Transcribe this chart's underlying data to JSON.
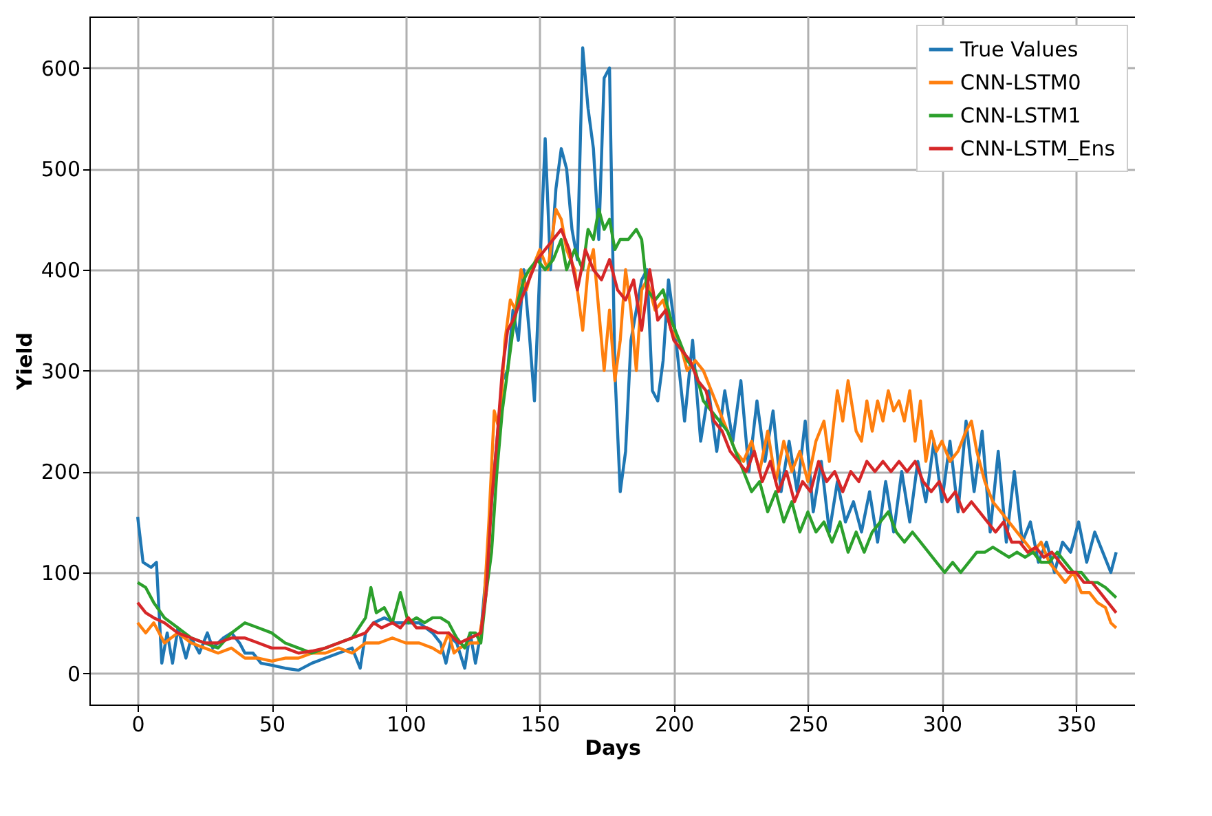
{
  "chart_data": {
    "type": "line",
    "xlabel": "Days",
    "ylabel": "Yield",
    "xlim": [
      -18,
      372
    ],
    "ylim": [
      -31,
      651
    ],
    "xticks": [
      0,
      50,
      100,
      150,
      200,
      250,
      300,
      350
    ],
    "yticks": [
      0,
      100,
      200,
      300,
      400,
      500,
      600
    ],
    "grid": true,
    "legend": "top right",
    "series": [
      {
        "name": "True Values",
        "color": "#1f77b4",
        "x": [
          0,
          2,
          5,
          7,
          9,
          11,
          13,
          15,
          18,
          20,
          23,
          26,
          28,
          32,
          35,
          38,
          40,
          43,
          46,
          50,
          55,
          60,
          65,
          70,
          75,
          80,
          83,
          85,
          88,
          92,
          96,
          100,
          105,
          110,
          113,
          115,
          117,
          119,
          122,
          124,
          126,
          128,
          130,
          132,
          134,
          136,
          138,
          140,
          142,
          144,
          146,
          148,
          150,
          152,
          154,
          156,
          158,
          160,
          162,
          164,
          166,
          168,
          170,
          172,
          174,
          176,
          178,
          180,
          182,
          184,
          186,
          188,
          190,
          192,
          194,
          196,
          198,
          200,
          204,
          207,
          210,
          213,
          216,
          219,
          222,
          225,
          228,
          231,
          234,
          237,
          240,
          243,
          246,
          249,
          252,
          255,
          258,
          261,
          264,
          267,
          270,
          273,
          276,
          279,
          282,
          285,
          288,
          291,
          294,
          297,
          300,
          303,
          306,
          309,
          312,
          315,
          318,
          321,
          324,
          327,
          330,
          333,
          336,
          339,
          342,
          345,
          348,
          351,
          354,
          357,
          360,
          363,
          365
        ],
        "values": [
          155,
          110,
          105,
          110,
          10,
          40,
          10,
          45,
          15,
          35,
          20,
          40,
          25,
          35,
          40,
          30,
          20,
          20,
          10,
          8,
          5,
          3,
          10,
          15,
          20,
          25,
          5,
          40,
          50,
          55,
          50,
          50,
          50,
          40,
          30,
          10,
          35,
          30,
          5,
          40,
          10,
          40,
          100,
          170,
          230,
          290,
          300,
          360,
          330,
          400,
          340,
          270,
          400,
          530,
          400,
          480,
          520,
          500,
          440,
          410,
          620,
          560,
          520,
          430,
          590,
          600,
          300,
          180,
          220,
          330,
          360,
          390,
          400,
          280,
          270,
          310,
          390,
          350,
          250,
          330,
          230,
          280,
          220,
          280,
          230,
          290,
          200,
          270,
          210,
          260,
          180,
          230,
          180,
          250,
          160,
          210,
          140,
          190,
          150,
          170,
          140,
          180,
          130,
          190,
          140,
          200,
          150,
          210,
          170,
          230,
          170,
          230,
          160,
          250,
          180,
          240,
          140,
          220,
          130,
          200,
          130,
          150,
          110,
          130,
          100,
          130,
          120,
          150,
          110,
          140,
          120,
          100,
          120
        ]
      },
      {
        "name": "CNN-LSTM0",
        "color": "#ff7f0e",
        "x": [
          0,
          3,
          6,
          10,
          15,
          20,
          25,
          30,
          35,
          40,
          45,
          50,
          55,
          60,
          65,
          70,
          75,
          80,
          85,
          90,
          95,
          100,
          105,
          110,
          113,
          116,
          118,
          120,
          124,
          127,
          129,
          131,
          133,
          135,
          137,
          139,
          141,
          143,
          145,
          147,
          150,
          153,
          156,
          158,
          160,
          163,
          166,
          168,
          170,
          172,
          174,
          176,
          178,
          180,
          182,
          184,
          186,
          188,
          190,
          193,
          196,
          199,
          202,
          205,
          208,
          211,
          214,
          217,
          220,
          223,
          226,
          229,
          232,
          235,
          238,
          241,
          244,
          247,
          250,
          253,
          256,
          258,
          261,
          263,
          265,
          268,
          270,
          272,
          274,
          276,
          278,
          280,
          282,
          284,
          286,
          288,
          290,
          292,
          294,
          296,
          298,
          300,
          303,
          306,
          309,
          311,
          313,
          316,
          319,
          322,
          325,
          328,
          331,
          334,
          337,
          340,
          343,
          346,
          349,
          352,
          355,
          358,
          361,
          363,
          365
        ],
        "values": [
          50,
          40,
          50,
          30,
          40,
          30,
          25,
          20,
          25,
          15,
          15,
          12,
          15,
          15,
          20,
          20,
          25,
          20,
          30,
          30,
          35,
          30,
          30,
          25,
          20,
          40,
          20,
          25,
          30,
          30,
          60,
          150,
          260,
          240,
          330,
          370,
          360,
          400,
          380,
          400,
          420,
          400,
          460,
          450,
          420,
          400,
          340,
          400,
          420,
          360,
          300,
          360,
          290,
          330,
          400,
          360,
          300,
          380,
          390,
          360,
          370,
          340,
          330,
          300,
          310,
          300,
          280,
          260,
          240,
          220,
          210,
          230,
          200,
          240,
          190,
          230,
          200,
          220,
          190,
          230,
          250,
          210,
          280,
          250,
          290,
          240,
          230,
          270,
          240,
          270,
          250,
          280,
          260,
          270,
          250,
          280,
          230,
          270,
          210,
          240,
          220,
          230,
          210,
          220,
          240,
          250,
          220,
          190,
          170,
          160,
          150,
          140,
          130,
          120,
          130,
          110,
          100,
          90,
          100,
          80,
          80,
          70,
          65,
          50,
          45
        ]
      },
      {
        "name": "CNN-LSTM1",
        "color": "#2ca02c",
        "x": [
          0,
          3,
          6,
          10,
          15,
          20,
          25,
          30,
          35,
          40,
          45,
          50,
          55,
          60,
          65,
          70,
          75,
          80,
          85,
          87,
          89,
          92,
          95,
          98,
          101,
          104,
          107,
          110,
          113,
          116,
          119,
          122,
          124,
          126,
          128,
          130,
          132,
          134,
          136,
          138,
          140,
          142,
          144,
          146,
          149,
          152,
          155,
          158,
          160,
          163,
          166,
          168,
          170,
          172,
          174,
          176,
          178,
          180,
          183,
          186,
          188,
          190,
          193,
          196,
          199,
          202,
          205,
          208,
          211,
          214,
          217,
          220,
          223,
          226,
          229,
          232,
          235,
          238,
          241,
          244,
          247,
          250,
          253,
          256,
          259,
          262,
          265,
          268,
          271,
          274,
          277,
          280,
          283,
          286,
          289,
          292,
          295,
          298,
          301,
          304,
          307,
          310,
          313,
          316,
          319,
          322,
          325,
          328,
          331,
          334,
          337,
          340,
          343,
          346,
          349,
          352,
          355,
          358,
          361,
          365
        ],
        "values": [
          90,
          85,
          70,
          55,
          45,
          35,
          30,
          25,
          40,
          50,
          45,
          40,
          30,
          25,
          20,
          25,
          30,
          35,
          55,
          85,
          60,
          65,
          50,
          80,
          50,
          55,
          50,
          55,
          55,
          50,
          35,
          25,
          40,
          40,
          30,
          80,
          120,
          200,
          260,
          300,
          340,
          370,
          390,
          400,
          410,
          400,
          410,
          430,
          400,
          420,
          400,
          440,
          430,
          460,
          440,
          450,
          420,
          430,
          430,
          440,
          430,
          380,
          370,
          380,
          350,
          330,
          310,
          300,
          270,
          260,
          250,
          240,
          220,
          200,
          180,
          190,
          160,
          180,
          150,
          170,
          140,
          160,
          140,
          150,
          130,
          150,
          120,
          140,
          120,
          140,
          150,
          160,
          140,
          130,
          140,
          130,
          120,
          110,
          100,
          110,
          100,
          110,
          120,
          120,
          125,
          120,
          115,
          120,
          115,
          120,
          110,
          110,
          120,
          110,
          100,
          100,
          90,
          90,
          85,
          75
        ]
      },
      {
        "name": "CNN-LSTM_Ens",
        "color": "#d62728",
        "x": [
          0,
          3,
          6,
          10,
          15,
          20,
          25,
          30,
          35,
          40,
          45,
          50,
          55,
          60,
          65,
          70,
          75,
          80,
          85,
          88,
          91,
          95,
          98,
          101,
          104,
          108,
          112,
          116,
          120,
          124,
          128,
          130,
          132,
          134,
          136,
          138,
          140,
          143,
          146,
          149,
          152,
          155,
          158,
          161,
          164,
          167,
          170,
          173,
          176,
          179,
          182,
          185,
          188,
          191,
          194,
          197,
          200,
          203,
          206,
          209,
          212,
          215,
          218,
          221,
          224,
          227,
          230,
          233,
          236,
          239,
          242,
          245,
          248,
          251,
          254,
          257,
          260,
          263,
          266,
          269,
          272,
          275,
          278,
          281,
          284,
          287,
          290,
          293,
          296,
          299,
          302,
          305,
          308,
          311,
          314,
          317,
          320,
          323,
          326,
          329,
          332,
          335,
          338,
          341,
          344,
          347,
          350,
          353,
          356,
          359,
          362,
          365
        ],
        "values": [
          70,
          60,
          55,
          50,
          40,
          35,
          30,
          30,
          35,
          35,
          30,
          25,
          25,
          20,
          22,
          25,
          30,
          35,
          40,
          50,
          45,
          50,
          45,
          55,
          45,
          45,
          40,
          40,
          30,
          35,
          40,
          80,
          170,
          230,
          300,
          340,
          350,
          370,
          390,
          410,
          420,
          430,
          440,
          420,
          380,
          420,
          400,
          390,
          410,
          380,
          370,
          390,
          340,
          400,
          350,
          360,
          330,
          320,
          310,
          290,
          280,
          250,
          240,
          220,
          210,
          200,
          220,
          190,
          210,
          180,
          200,
          170,
          190,
          180,
          210,
          190,
          200,
          180,
          200,
          190,
          210,
          200,
          210,
          200,
          210,
          200,
          210,
          190,
          180,
          190,
          170,
          180,
          160,
          170,
          160,
          150,
          140,
          150,
          130,
          130,
          120,
          125,
          115,
          120,
          110,
          100,
          100,
          90,
          90,
          80,
          70,
          60
        ]
      }
    ]
  }
}
